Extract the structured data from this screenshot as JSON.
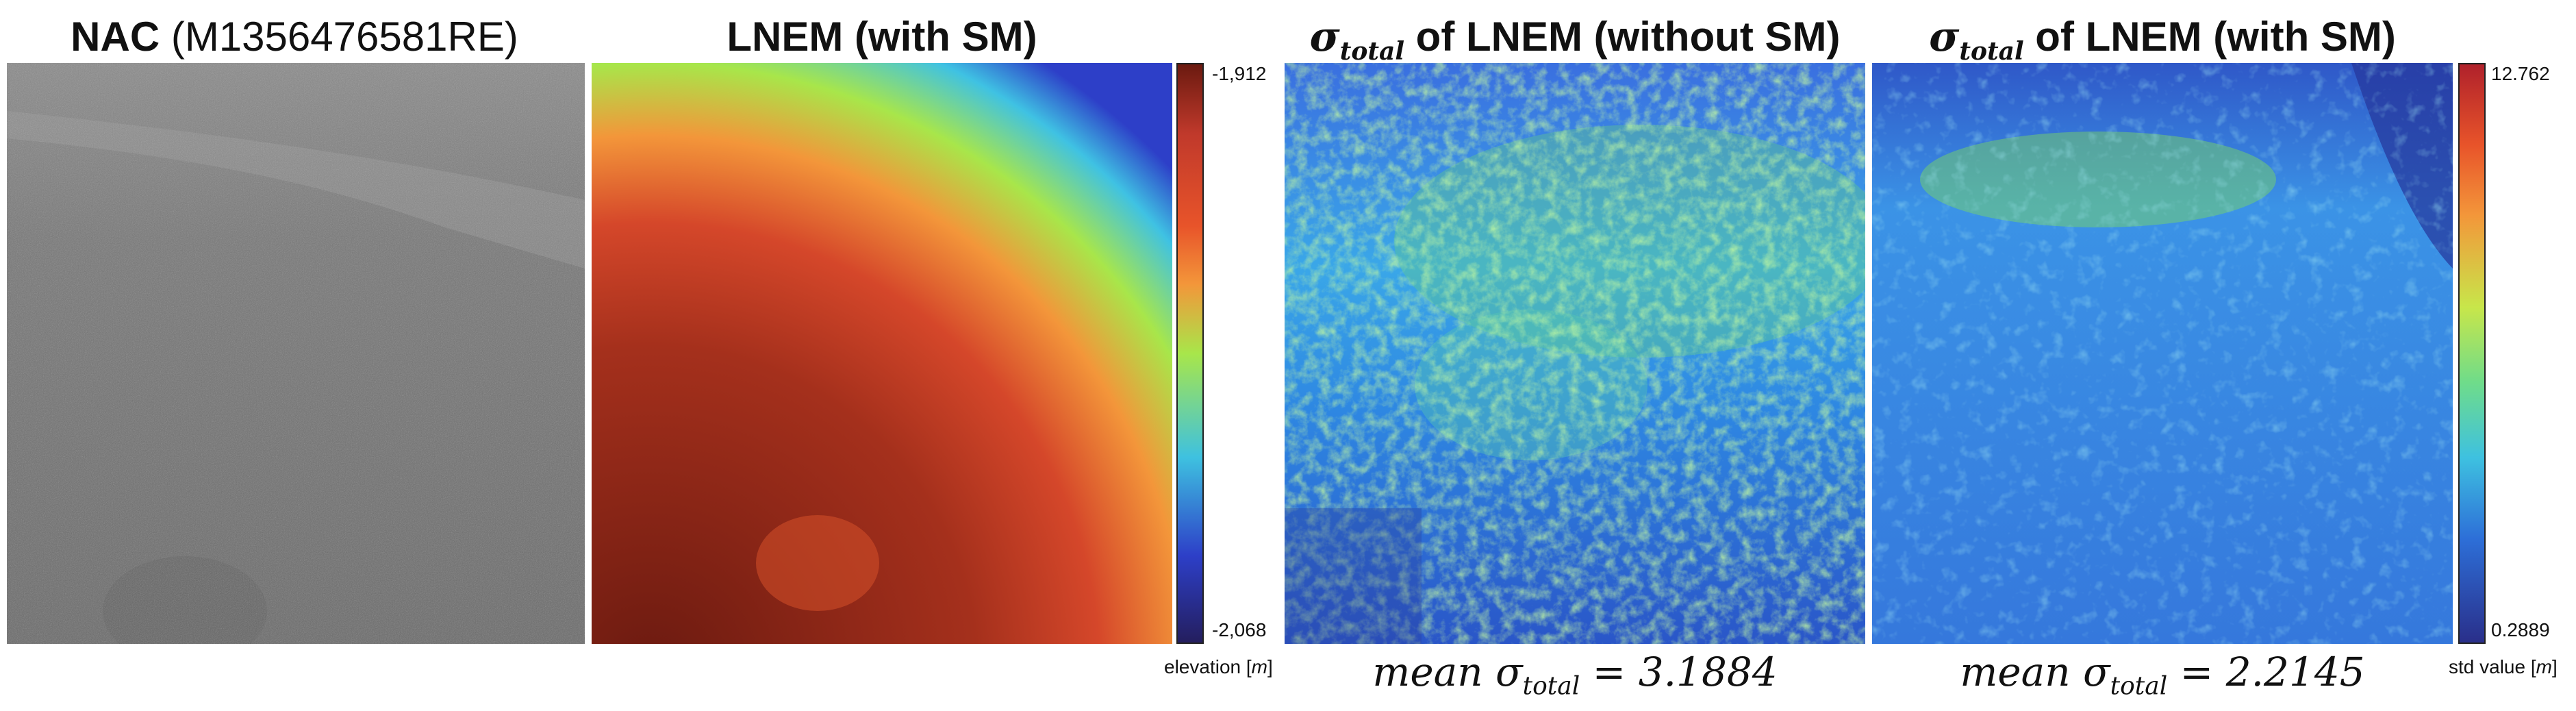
{
  "panels": [
    {
      "title_bold": "NAC",
      "title_rest": " (M1356476581RE)"
    },
    {
      "title_bold": "LNEM (with SM)"
    },
    {
      "sym_main": "σ",
      "sym_sub": "total",
      "title_bold": " of LNEM (without SM)"
    },
    {
      "sym_main": "σ",
      "sym_sub": "total",
      "title_bold": " of LNEM (with SM)"
    }
  ],
  "elevation_colorbar": {
    "max_label": "-1,912",
    "min_label": "-2,068",
    "unit_prefix": "elevation [",
    "unit": "m",
    "unit_suffix": "]"
  },
  "std_colorbar": {
    "max_label": "12.762",
    "min_label": "0.2889",
    "unit_prefix": "std value [",
    "unit": "m",
    "unit_suffix": "]"
  },
  "captions": [
    {
      "prefix": "mean σ",
      "sub": "total",
      "suffix": " = 3.1884"
    },
    {
      "prefix": "mean σ",
      "sub": "total",
      "suffix": " = 2.2145"
    }
  ],
  "colors": {
    "elev_high": "#6b1a10",
    "elev_mid": "#e8542a",
    "elev_low": "#a8e64a",
    "elev_top": "#2d3fc8",
    "std_low": "#2a2f8a",
    "std_mid": "#3ec1e0",
    "std_high": "#b0212b"
  }
}
